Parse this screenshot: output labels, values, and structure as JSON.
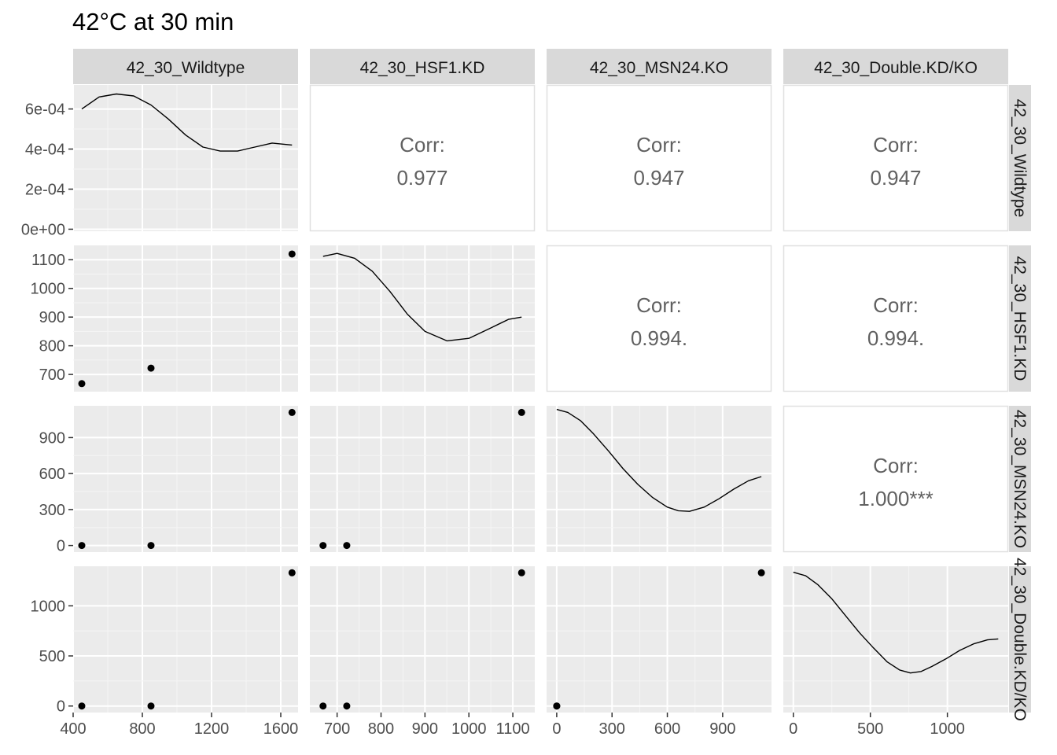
{
  "title": "42°C at 30 min",
  "chart_data": {
    "type": "scatter",
    "title": "42°C at 30 min",
    "variables": [
      "42_30_Wildtype",
      "42_30_HSF1.KD",
      "42_30_MSN24.KO",
      "42_30_Double.KD/KO"
    ],
    "corr_label": "Corr:",
    "correlations": [
      {
        "row": 0,
        "col": 1,
        "value": "0.977"
      },
      {
        "row": 0,
        "col": 2,
        "value": "0.947"
      },
      {
        "row": 0,
        "col": 3,
        "value": "0.947"
      },
      {
        "row": 1,
        "col": 2,
        "value": "0.994."
      },
      {
        "row": 1,
        "col": 3,
        "value": "0.994."
      },
      {
        "row": 2,
        "col": 3,
        "value": "1.000***"
      }
    ],
    "observations": [
      [
        450,
        668,
        0,
        0
      ],
      [
        850,
        722,
        0,
        0
      ],
      [
        1665,
        1120,
        1110,
        1330
      ]
    ],
    "x_axes": [
      {
        "range": [
          400,
          1700
        ],
        "ticks": [
          400,
          800,
          1200,
          1600
        ],
        "labels": [
          "400",
          "800",
          "1200",
          "1600"
        ]
      },
      {
        "range": [
          638,
          1150
        ],
        "ticks": [
          700,
          800,
          900,
          1000,
          1100
        ],
        "labels": [
          "700",
          "800",
          "900",
          "1000",
          "1100"
        ]
      },
      {
        "range": [
          -55,
          1165
        ],
        "ticks": [
          0,
          300,
          600,
          900
        ],
        "labels": [
          "0",
          "300",
          "600",
          "900"
        ]
      },
      {
        "range": [
          -65,
          1395
        ],
        "ticks": [
          0,
          500,
          1000
        ],
        "labels": [
          "0",
          "500",
          "1000"
        ]
      }
    ],
    "y_axes": [
      {
        "range": [
          -1e-05,
          0.00072
        ],
        "ticks": [
          0,
          0.0002,
          0.0004,
          0.0006
        ],
        "labels": [
          "0e+00",
          "2e-04",
          "4e-04",
          "6e-04"
        ]
      },
      {
        "range": [
          640,
          1150
        ],
        "ticks": [
          700,
          800,
          900,
          1000,
          1100
        ],
        "labels": [
          "700",
          "800",
          "900",
          "1000",
          "1100"
        ]
      },
      {
        "range": [
          -55,
          1165
        ],
        "ticks": [
          0,
          300,
          600,
          900
        ],
        "labels": [
          "0",
          "300",
          "600",
          "900"
        ]
      },
      {
        "range": [
          -65,
          1395
        ],
        "ticks": [
          0,
          500,
          1000
        ],
        "labels": [
          "0",
          "500",
          "1000"
        ]
      }
    ],
    "densities": [
      {
        "x": [
          450,
          550,
          650,
          750,
          850,
          950,
          1050,
          1150,
          1250,
          1350,
          1450,
          1550,
          1665
        ],
        "y": [
          0.0006,
          0.00066,
          0.000675,
          0.000665,
          0.00062,
          0.00055,
          0.00047,
          0.00041,
          0.00039,
          0.00039,
          0.00041,
          0.00043,
          0.00042
        ]
      },
      {
        "x": [
          668,
          700,
          740,
          780,
          820,
          860,
          900,
          950,
          1000,
          1050,
          1090,
          1120
        ],
        "y": [
          1112,
          1122,
          1105,
          1060,
          990,
          910,
          850,
          817,
          826,
          862,
          892,
          900
        ]
      },
      {
        "x": [
          0,
          60,
          130,
          200,
          280,
          360,
          440,
          520,
          600,
          660,
          720,
          800,
          880,
          960,
          1040,
          1110
        ],
        "y": [
          1135,
          1110,
          1040,
          930,
          790,
          640,
          510,
          400,
          320,
          290,
          285,
          320,
          390,
          470,
          540,
          575
        ]
      },
      {
        "x": [
          0,
          80,
          160,
          250,
          340,
          430,
          520,
          610,
          690,
          760,
          830,
          900,
          990,
          1080,
          1170,
          1260,
          1330
        ],
        "y": [
          1335,
          1300,
          1210,
          1070,
          900,
          730,
          580,
          440,
          360,
          330,
          345,
          395,
          470,
          555,
          620,
          660,
          670
        ]
      }
    ]
  }
}
